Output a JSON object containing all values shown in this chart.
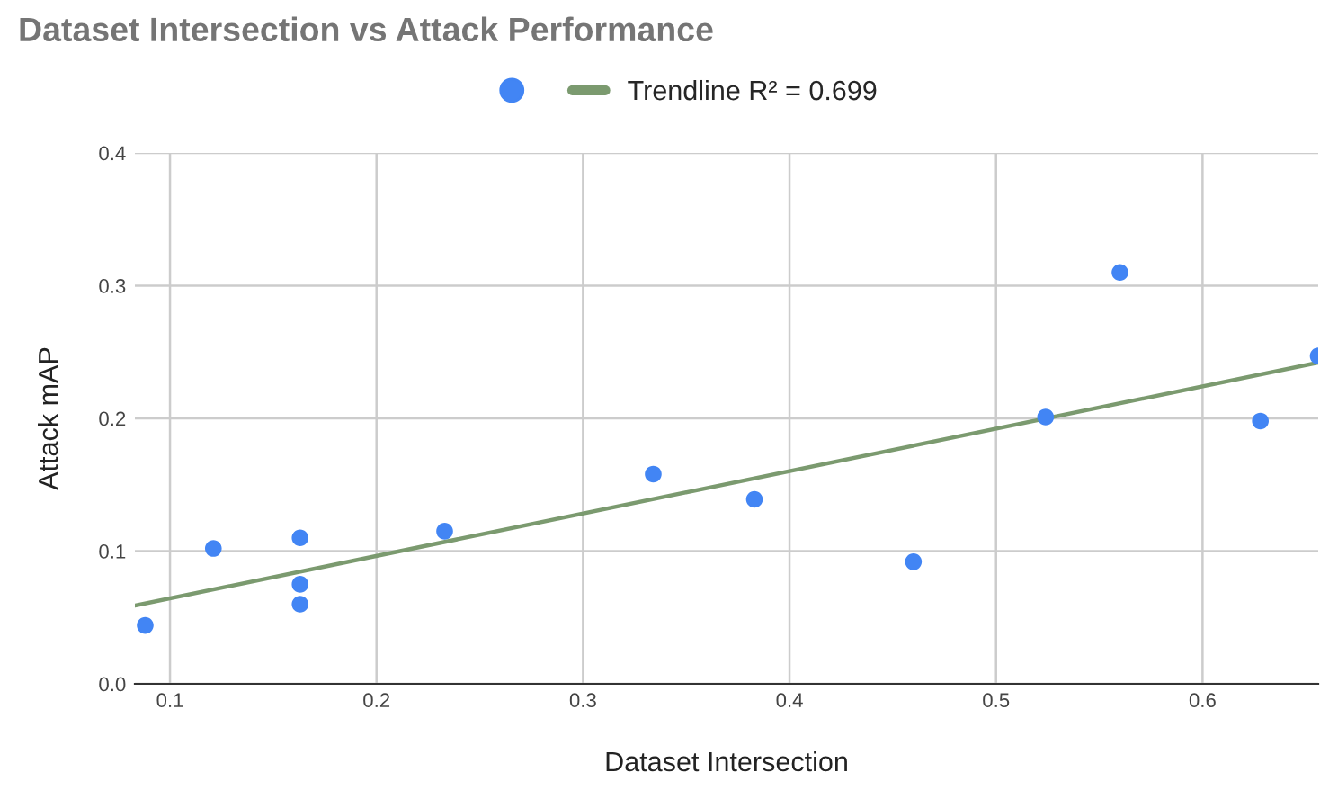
{
  "chart_data": {
    "type": "scatter",
    "title": "Dataset Intersection vs Attack Performance",
    "xlabel": "Dataset Intersection",
    "ylabel": "Attack mAP",
    "series": [
      {
        "marker": "circle",
        "color": "#4285f4",
        "x": [
          0.088,
          0.121,
          0.163,
          0.163,
          0.163,
          0.233,
          0.334,
          0.383,
          0.46,
          0.524,
          0.56,
          0.628,
          0.656
        ],
        "values": [
          0.044,
          0.102,
          0.11,
          0.075,
          0.06,
          0.115,
          0.158,
          0.139,
          0.092,
          0.201,
          0.31,
          0.198,
          0.247
        ]
      },
      {
        "type": "line",
        "name": "Trendline R² = 0.699",
        "color": "#7b9a6f",
        "x": [
          0.083,
          0.656
        ],
        "values": [
          0.059,
          0.242
        ]
      }
    ],
    "xlim": [
      0.083,
      0.656
    ],
    "xticks": [
      0.1,
      0.2,
      0.3,
      0.4,
      0.5,
      0.6
    ],
    "ylim": [
      0,
      0.4
    ],
    "yticks": [
      {
        "value": 0,
        "label": "0.0"
      },
      0.1,
      0.2,
      0.3,
      0.4
    ],
    "grid": true,
    "legend": "top"
  }
}
